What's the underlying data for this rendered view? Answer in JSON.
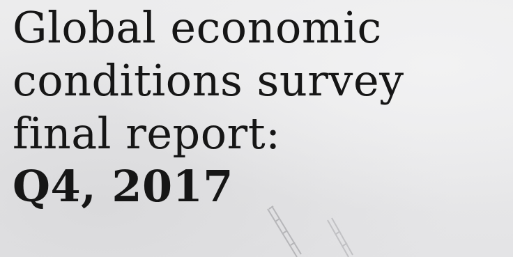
{
  "cover": {
    "title_lines": [
      "Global economic",
      "conditions survey",
      "final report:"
    ],
    "title_date": "Q4, 2017",
    "background_color": "#e9e9ea",
    "text_color": "#161616"
  }
}
